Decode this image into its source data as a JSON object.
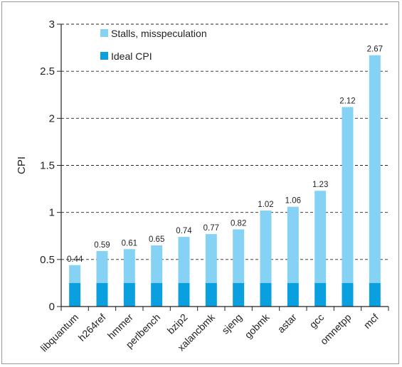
{
  "chart_data": {
    "type": "bar",
    "stacked": true,
    "categories": [
      "libquantum",
      "h264ref",
      "hmmer",
      "perlbench",
      "bzip2",
      "xalancbmk",
      "sjeng",
      "gobmk",
      "astar",
      "gcc",
      "omnetpp",
      "mcf"
    ],
    "totals": [
      0.44,
      0.59,
      0.61,
      0.65,
      0.74,
      0.77,
      0.82,
      1.02,
      1.06,
      1.23,
      2.12,
      2.67
    ],
    "total_labels": [
      "0.44",
      "0.59",
      "0.61",
      "0.65",
      "0.74",
      "0.77",
      "0.82",
      "1.02",
      "1.06",
      "1.23",
      "2.12",
      "2.67"
    ],
    "series": [
      {
        "name": "Ideal CPI",
        "values": [
          0.25,
          0.25,
          0.25,
          0.25,
          0.25,
          0.25,
          0.25,
          0.25,
          0.25,
          0.25,
          0.25,
          0.25
        ],
        "color": "#0aa0e0"
      },
      {
        "name": "Stalls, misspeculation",
        "values": [
          0.19,
          0.34,
          0.36,
          0.4,
          0.49,
          0.52,
          0.57,
          0.77,
          0.81,
          0.98,
          1.87,
          2.42
        ],
        "color": "#85d2f5"
      }
    ],
    "title": "",
    "xlabel": "",
    "ylabel": "CPI",
    "ylim": [
      0,
      3
    ],
    "yticks": [
      "0",
      "0.5",
      "1",
      "1.5",
      "2",
      "2.5",
      "3"
    ],
    "grid": "horizontal-dashed",
    "legend_position": "top-left"
  }
}
